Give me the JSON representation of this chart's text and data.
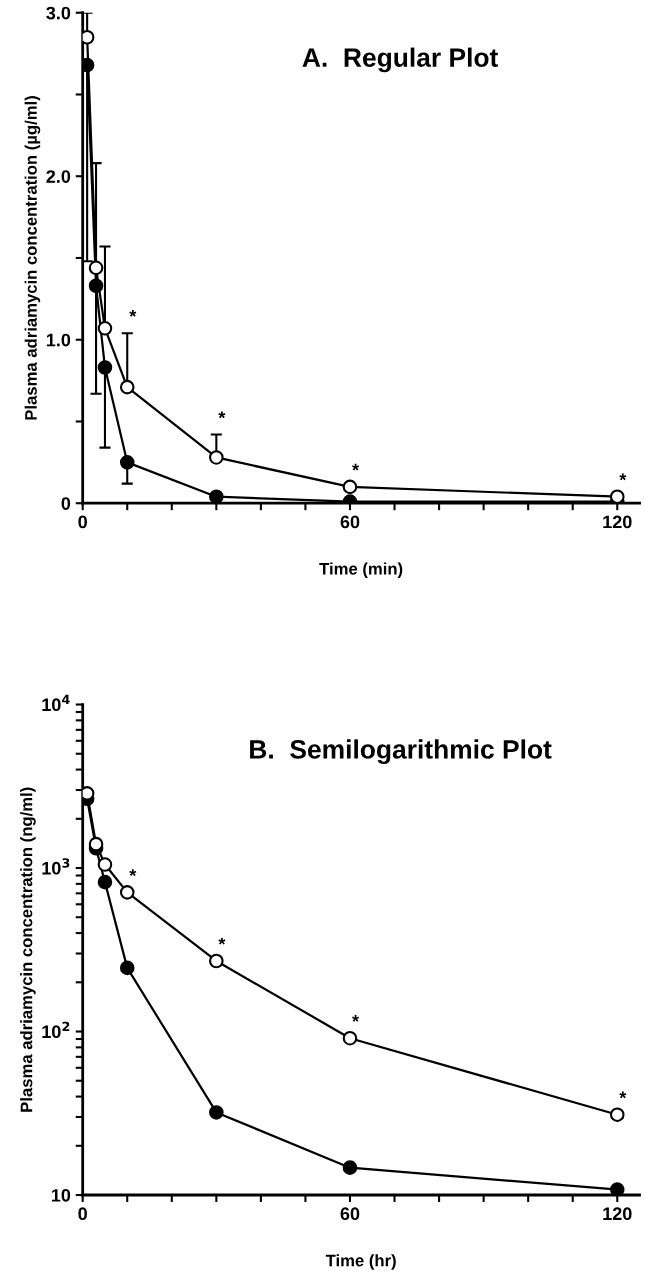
{
  "chart_data": [
    {
      "type": "line",
      "title": "A.  Regular Plot",
      "xlabel": "Time (min)",
      "ylabel": "Plasma adriamycin concentration (µg/ml)",
      "x": [
        1,
        3,
        5,
        10,
        30,
        60,
        120
      ],
      "marker": "circle",
      "line_style": "solid",
      "grid": false,
      "series": [
        {
          "color": "#ffffff",
          "values": [
            2.85,
            1.44,
            1.07,
            0.71,
            0.28,
            0.1,
            0.04
          ],
          "errors": [
            [
              2.85,
              3.0
            ],
            [
              1.44,
              2.08
            ],
            [
              1.07,
              1.57
            ],
            [
              0.71,
              1.04
            ],
            [
              0.28,
              0.42
            ],
            null,
            null
          ]
        },
        {
          "color": "#000000",
          "values": [
            2.68,
            1.33,
            0.83,
            0.25,
            0.04,
            0.01,
            0.01
          ],
          "errors": [
            [
              1.48,
              2.68
            ],
            [
              0.67,
              1.33
            ],
            [
              0.34,
              0.83
            ],
            [
              0.12,
              0.25
            ],
            null,
            null,
            null
          ]
        }
      ],
      "xlim": [
        0,
        125
      ],
      "xticks": [
        0,
        {
          "value": 10,
          "label": null
        },
        {
          "value": 20,
          "label": null
        },
        {
          "value": 30,
          "label": null
        },
        {
          "value": 40,
          "label": null
        },
        {
          "value": 50,
          "label": null
        },
        60,
        {
          "value": 70,
          "label": null
        },
        {
          "value": 80,
          "label": null
        },
        {
          "value": 90,
          "label": null
        },
        {
          "value": 100,
          "label": null
        },
        {
          "value": 110,
          "label": null
        },
        120
      ],
      "ylim": [
        0,
        3.0
      ],
      "yticks": [
        {
          "value": 0,
          "label": "0"
        },
        {
          "value": 0.5,
          "label": null
        },
        {
          "value": 1.0,
          "label": "1.0"
        },
        {
          "value": 1.5,
          "label": null
        },
        {
          "value": 2.0,
          "label": "2.0"
        },
        {
          "value": 2.5,
          "label": null
        },
        {
          "value": 3.0,
          "label": "3.0"
        }
      ],
      "annotations": [
        {
          "text": "*",
          "x": 10,
          "y": 1.04
        },
        {
          "text": "*",
          "x": 30,
          "y": 0.42
        },
        {
          "text": "*",
          "x": 60,
          "y": 0.1
        },
        {
          "text": "*",
          "x": 120,
          "y": 0.04
        }
      ]
    },
    {
      "type": "line",
      "title": "B.  Semilogarithmic Plot",
      "xlabel": "Time (hr)",
      "ylabel": "Plasma adriamycin concentration (ng/ml)",
      "x": [
        1,
        3,
        5,
        10,
        30,
        60,
        120
      ],
      "marker": "circle",
      "line_style": "solid",
      "grid": false,
      "log": "y",
      "series": [
        {
          "color": "#ffffff",
          "values": [
            2860,
            1400,
            1050,
            710,
            270,
            91,
            31
          ]
        },
        {
          "color": "#000000",
          "values": [
            2650,
            1320,
            820,
            245,
            32,
            14.7,
            10.8
          ]
        }
      ],
      "xlim": [
        0,
        125
      ],
      "xticks": [
        0,
        {
          "value": 10,
          "label": null
        },
        {
          "value": 20,
          "label": null
        },
        {
          "value": 30,
          "label": null
        },
        {
          "value": 40,
          "label": null
        },
        {
          "value": 50,
          "label": null
        },
        60,
        {
          "value": 70,
          "label": null
        },
        {
          "value": 80,
          "label": null
        },
        {
          "value": 90,
          "label": null
        },
        {
          "value": 100,
          "label": null
        },
        {
          "value": 110,
          "label": null
        },
        120
      ],
      "ylim": [
        10,
        10000
      ],
      "yticks": [
        {
          "value": 10,
          "label": "10"
        },
        {
          "value": 20,
          "label": null
        },
        {
          "value": 30,
          "label": null
        },
        {
          "value": 40,
          "label": null
        },
        {
          "value": 50,
          "label": null
        },
        {
          "value": 60,
          "label": null
        },
        {
          "value": 70,
          "label": null
        },
        {
          "value": 80,
          "label": null
        },
        {
          "value": 90,
          "label": null
        },
        {
          "value": 100,
          "label": "10$^{2}$"
        },
        {
          "value": 200,
          "label": null
        },
        {
          "value": 300,
          "label": null
        },
        {
          "value": 400,
          "label": null
        },
        {
          "value": 500,
          "label": null
        },
        {
          "value": 600,
          "label": null
        },
        {
          "value": 700,
          "label": null
        },
        {
          "value": 800,
          "label": null
        },
        {
          "value": 900,
          "label": null
        },
        {
          "value": 1000,
          "label": "10$^{3}$"
        },
        {
          "value": 2000,
          "label": null
        },
        {
          "value": 3000,
          "label": null
        },
        {
          "value": 4000,
          "label": null
        },
        {
          "value": 5000,
          "label": null
        },
        {
          "value": 6000,
          "label": null
        },
        {
          "value": 7000,
          "label": null
        },
        {
          "value": 8000,
          "label": null
        },
        {
          "value": 9000,
          "label": null
        },
        {
          "value": 10000,
          "label": "10$^{4}$"
        }
      ],
      "annotations": [
        {
          "text": "*",
          "x": 10,
          "y": 710
        },
        {
          "text": "*",
          "x": 30,
          "y": 270
        },
        {
          "text": "*",
          "x": 60,
          "y": 91
        },
        {
          "text": "*",
          "x": 120,
          "y": 31
        }
      ]
    }
  ]
}
